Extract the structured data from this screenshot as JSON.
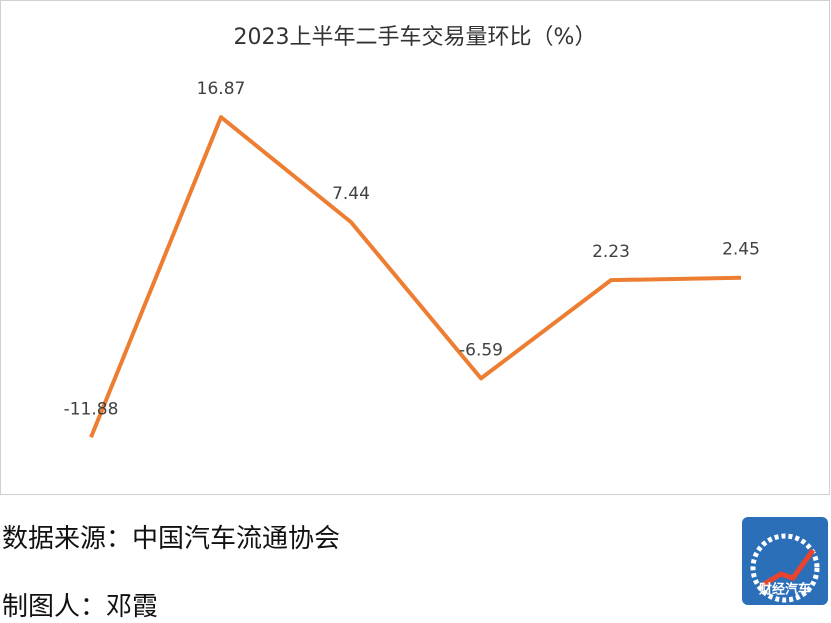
{
  "chart_data": {
    "type": "line",
    "title": "2023上半年二手车交易量环比（%）",
    "categories": [
      null,
      null,
      null,
      null,
      null,
      null
    ],
    "values": [
      -11.88,
      16.87,
      7.44,
      -6.59,
      2.23,
      2.45
    ],
    "color": "#ED7D31",
    "ylim": [
      -15,
      22
    ],
    "grid": false
  },
  "footer": {
    "source": "数据来源：中国汽车流通协会",
    "author": "制图人：邓霞"
  },
  "logo": {
    "text": "财经汽车"
  }
}
